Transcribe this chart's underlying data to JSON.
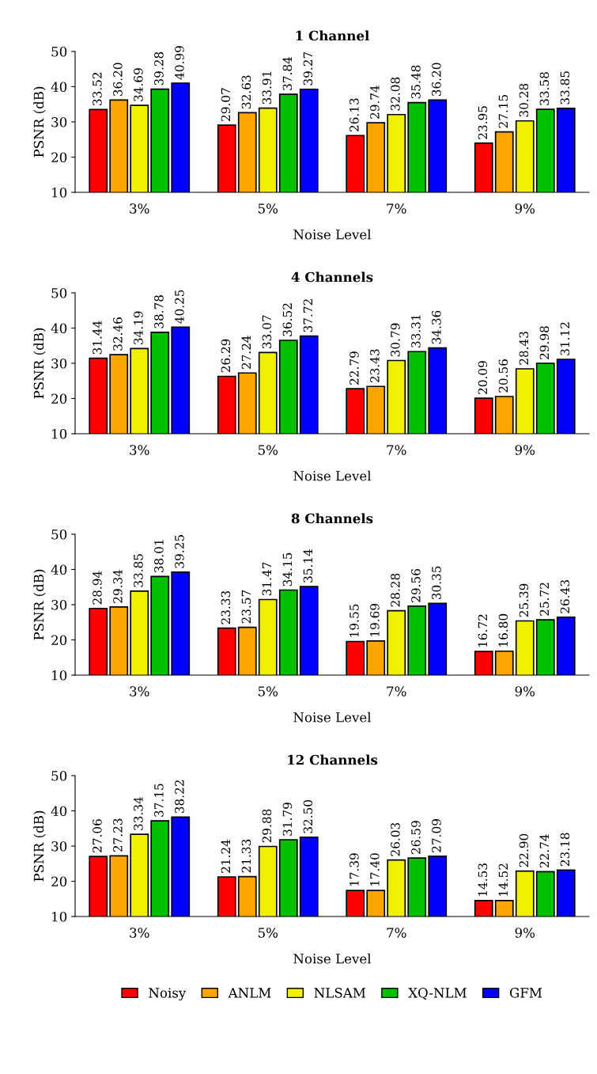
{
  "chart_data": [
    {
      "type": "bar",
      "title": "1 Channel",
      "xlabel": "Noise Level",
      "ylabel": "PSNR (dB)",
      "categories": [
        "3%",
        "5%",
        "7%",
        "9%"
      ],
      "ylim": [
        10,
        50
      ],
      "yticks": [
        10,
        20,
        30,
        40,
        50
      ],
      "grid": false,
      "series": [
        {
          "color": "#ff0000",
          "values": [
            33.52,
            29.07,
            26.13,
            23.95
          ],
          "value_labels": [
            "33.52",
            "29.07",
            "26.13",
            "23.95"
          ]
        },
        {
          "color": "#ffa500",
          "values": [
            36.2,
            32.63,
            29.74,
            27.15
          ],
          "value_labels": [
            "36.20",
            "32.63",
            "29.74",
            "27.15"
          ]
        },
        {
          "color": "#f0f000",
          "values": [
            34.69,
            33.91,
            32.08,
            30.28
          ],
          "value_labels": [
            "34.69",
            "33.91",
            "32.08",
            "30.28"
          ]
        },
        {
          "color": "#00c000",
          "values": [
            39.28,
            37.84,
            35.48,
            33.58
          ],
          "value_labels": [
            "39.28",
            "37.84",
            "35.48",
            "33.58"
          ]
        },
        {
          "color": "#0000ff",
          "values": [
            40.99,
            39.27,
            36.2,
            33.85
          ],
          "value_labels": [
            "40.99",
            "39.27",
            "36.20",
            "33.85"
          ]
        }
      ]
    },
    {
      "type": "bar",
      "title": "4 Channels",
      "xlabel": "Noise Level",
      "ylabel": "PSNR (dB)",
      "categories": [
        "3%",
        "5%",
        "7%",
        "9%"
      ],
      "ylim": [
        10,
        50
      ],
      "yticks": [
        10,
        20,
        30,
        40,
        50
      ],
      "grid": false,
      "series": [
        {
          "color": "#ff0000",
          "values": [
            31.44,
            26.29,
            22.79,
            20.09
          ],
          "value_labels": [
            "31.44",
            "26.29",
            "22.79",
            "20.09"
          ]
        },
        {
          "color": "#ffa500",
          "values": [
            32.46,
            27.24,
            23.43,
            20.56
          ],
          "value_labels": [
            "32.46",
            "27.24",
            "23.43",
            "20.56"
          ]
        },
        {
          "color": "#f0f000",
          "values": [
            34.19,
            33.07,
            30.79,
            28.43
          ],
          "value_labels": [
            "34.19",
            "33.07",
            "30.79",
            "28.43"
          ]
        },
        {
          "color": "#00c000",
          "values": [
            38.78,
            36.52,
            33.31,
            29.98
          ],
          "value_labels": [
            "38.78",
            "36.52",
            "33.31",
            "29.98"
          ]
        },
        {
          "color": "#0000ff",
          "values": [
            40.25,
            37.72,
            34.36,
            31.12
          ],
          "value_labels": [
            "40.25",
            "37.72",
            "34.36",
            "31.12"
          ]
        }
      ]
    },
    {
      "type": "bar",
      "title": "8 Channels",
      "xlabel": "Noise Level",
      "ylabel": "PSNR (dB)",
      "categories": [
        "3%",
        "5%",
        "7%",
        "9%"
      ],
      "ylim": [
        10,
        50
      ],
      "yticks": [
        10,
        20,
        30,
        40,
        50
      ],
      "grid": false,
      "series": [
        {
          "color": "#ff0000",
          "values": [
            28.94,
            23.33,
            19.55,
            16.72
          ],
          "value_labels": [
            "28.94",
            "23.33",
            "19.55",
            "16.72"
          ]
        },
        {
          "color": "#ffa500",
          "values": [
            29.34,
            23.57,
            19.69,
            16.8
          ],
          "value_labels": [
            "29.34",
            "23.57",
            "19.69",
            "16.80"
          ]
        },
        {
          "color": "#f0f000",
          "values": [
            33.85,
            31.47,
            28.28,
            25.39
          ],
          "value_labels": [
            "33.85",
            "31.47",
            "28.28",
            "25.39"
          ]
        },
        {
          "color": "#00c000",
          "values": [
            38.01,
            34.15,
            29.56,
            25.72
          ],
          "value_labels": [
            "38.01",
            "34.15",
            "29.56",
            "25.72"
          ]
        },
        {
          "color": "#0000ff",
          "values": [
            39.25,
            35.14,
            30.35,
            26.43
          ],
          "value_labels": [
            "39.25",
            "35.14",
            "30.35",
            "26.43"
          ]
        }
      ]
    },
    {
      "type": "bar",
      "title": "12 Channels",
      "xlabel": "Noise Level",
      "ylabel": "PSNR (dB)",
      "categories": [
        "3%",
        "5%",
        "7%",
        "9%"
      ],
      "ylim": [
        10,
        50
      ],
      "yticks": [
        10,
        20,
        30,
        40,
        50
      ],
      "grid": false,
      "legend": "bottom",
      "series": [
        {
          "name": "Noisy",
          "color": "#ff0000",
          "values": [
            27.06,
            21.24,
            17.39,
            14.53
          ],
          "value_labels": [
            "27.06",
            "21.24",
            "17.39",
            "14.53"
          ]
        },
        {
          "name": "ANLM",
          "color": "#ffa500",
          "values": [
            27.23,
            21.33,
            17.4,
            14.52
          ],
          "value_labels": [
            "27.23",
            "21.33",
            "17.40",
            "14.52"
          ]
        },
        {
          "name": "NLSAM",
          "color": "#f0f000",
          "values": [
            33.34,
            29.88,
            26.03,
            22.9
          ],
          "value_labels": [
            "33.34",
            "29.88",
            "26.03",
            "22.90"
          ]
        },
        {
          "name": "XQ-NLM",
          "color": "#00c000",
          "values": [
            37.15,
            31.79,
            26.59,
            22.74
          ],
          "value_labels": [
            "37.15",
            "31.79",
            "26.59",
            "22.74"
          ]
        },
        {
          "name": "GFM",
          "color": "#0000ff",
          "values": [
            38.22,
            32.5,
            27.09,
            23.18
          ],
          "value_labels": [
            "38.22",
            "32.50",
            "27.09",
            "23.18"
          ]
        }
      ]
    }
  ]
}
